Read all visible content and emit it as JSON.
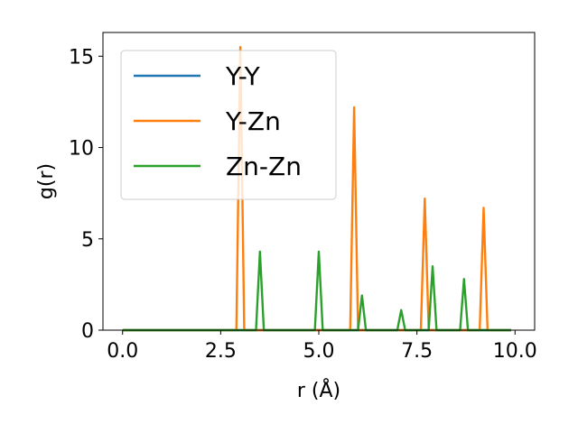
{
  "chart_data": {
    "type": "line",
    "xlabel": "r (Å)",
    "ylabel": "g(r)",
    "xlim": [
      -0.5,
      10.5
    ],
    "ylim": [
      0,
      16.3
    ],
    "xticks": [
      0.0,
      2.5,
      5.0,
      7.5,
      10.0
    ],
    "xtick_labels": [
      "0.0",
      "2.5",
      "5.0",
      "7.5",
      "10.0"
    ],
    "yticks": [
      0,
      5,
      10,
      15
    ],
    "ytick_labels": [
      "0",
      "5",
      "10",
      "15"
    ],
    "grid": false,
    "legend_position": "upper-left",
    "series": [
      {
        "name": "Y-Y",
        "color": "#1f77b4",
        "x": [
          0.0,
          9.9
        ],
        "y": [
          0,
          0
        ]
      },
      {
        "name": "Y-Zn",
        "color": "#ff7f0e",
        "x": [
          0.0,
          2.9,
          3.0,
          3.1,
          5.8,
          5.9,
          6.0,
          7.6,
          7.7,
          7.8,
          9.1,
          9.2,
          9.3,
          9.9
        ],
        "y": [
          0,
          0,
          15.5,
          0,
          0,
          12.2,
          0,
          0,
          7.2,
          0,
          0,
          6.7,
          0,
          0
        ]
      },
      {
        "name": "Zn-Zn",
        "color": "#2ca02c",
        "x": [
          0.0,
          3.4,
          3.5,
          3.6,
          4.9,
          5.0,
          5.1,
          6.0,
          6.1,
          6.2,
          7.0,
          7.1,
          7.2,
          7.8,
          7.9,
          8.0,
          8.6,
          8.7,
          8.8,
          9.9
        ],
        "y": [
          0,
          0,
          4.3,
          0,
          0,
          4.3,
          0,
          0,
          1.9,
          0,
          0,
          1.1,
          0,
          0,
          3.5,
          0,
          0,
          2.8,
          0,
          0
        ]
      }
    ]
  }
}
